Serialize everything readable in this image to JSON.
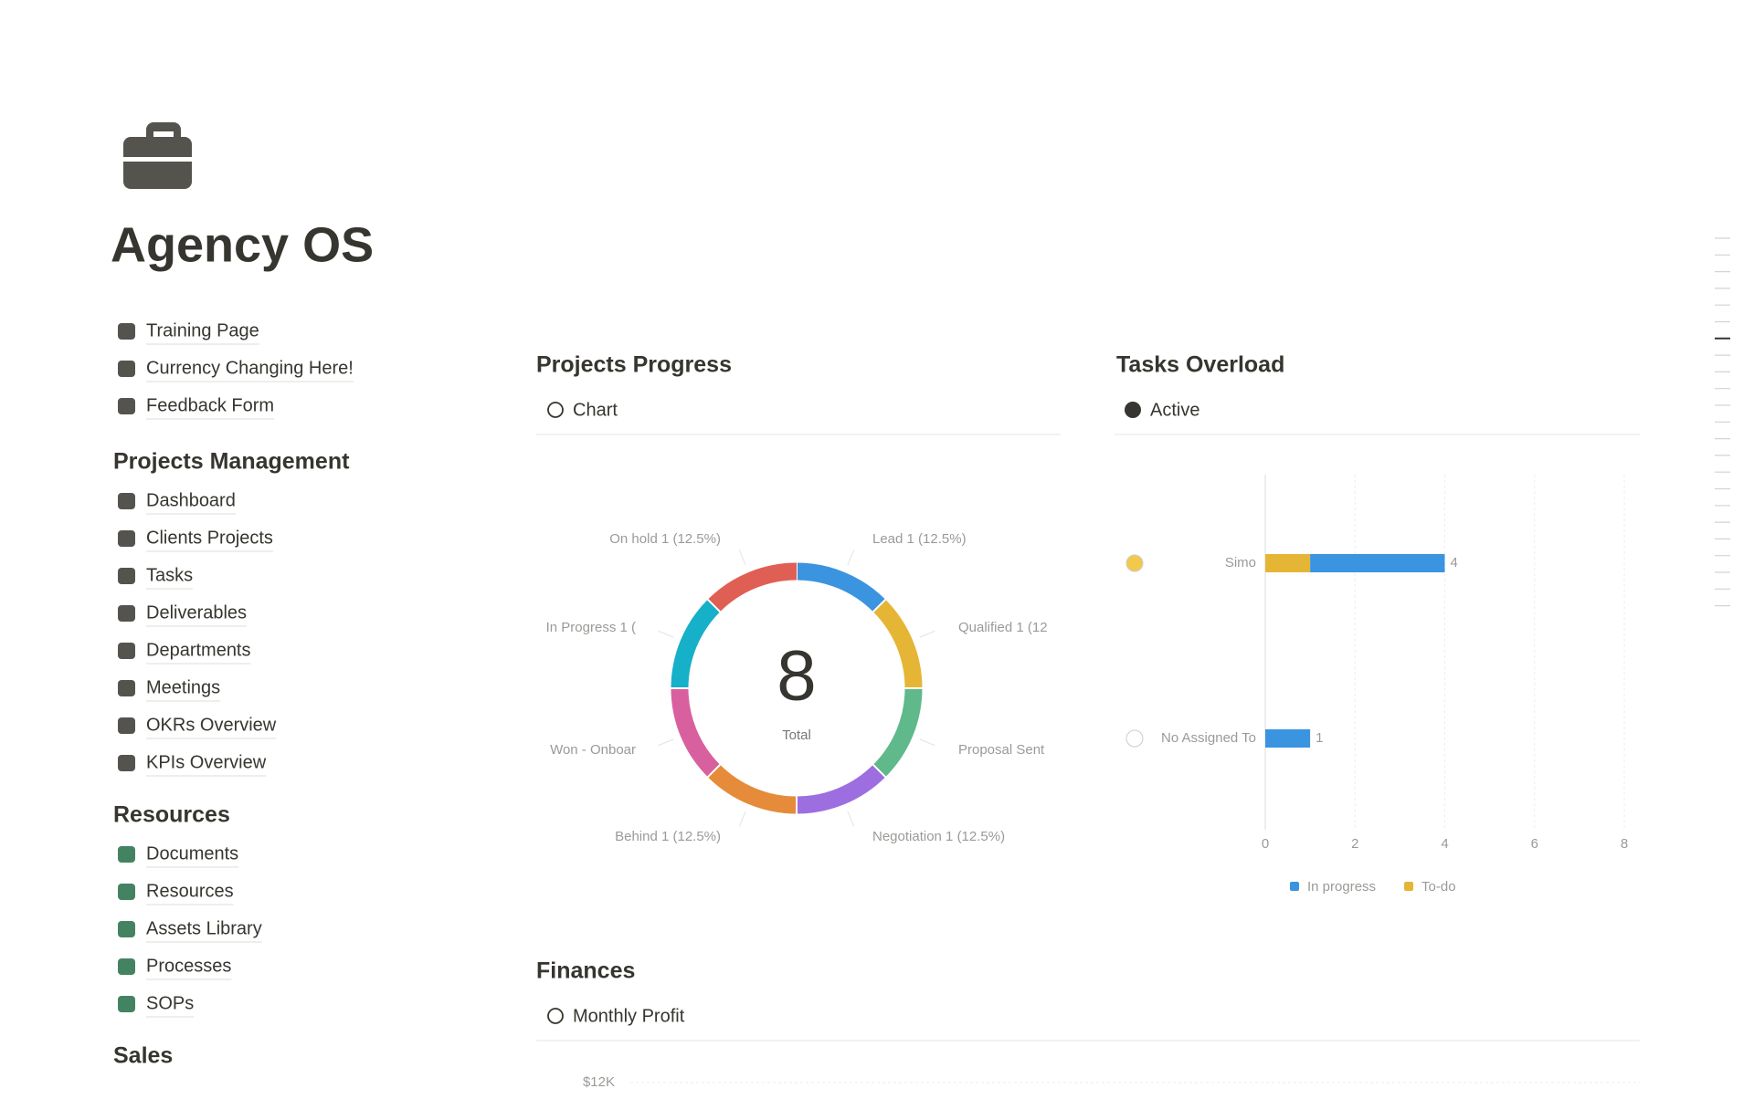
{
  "page": {
    "title": "Agency OS",
    "links": [
      "Training Page",
      "Currency Changing Here!",
      "Feedback Form"
    ],
    "sections": [
      {
        "heading": "Projects Management",
        "items": [
          "Dashboard",
          "Clients Projects",
          "Tasks",
          "Deliverables",
          "Departments",
          "Meetings",
          "OKRs Overview",
          "KPIs Overview"
        ]
      },
      {
        "heading": "Resources",
        "items": [
          "Documents",
          "Resources",
          "Assets Library",
          "Processes",
          "SOPs"
        ]
      },
      {
        "heading": "Sales",
        "items": []
      }
    ]
  },
  "projects_progress": {
    "title": "Projects Progress",
    "view": "Chart",
    "chart_data": {
      "type": "donut",
      "total": 8,
      "total_label": "Total",
      "labels": [
        "Lead  1 (12.5%)",
        "Qualified  1 (12",
        "Proposal Sent",
        "Negotiation  1 (12.5%)",
        "Behind  1 (12.5%)",
        "Won - Onboar",
        "In Progress  1 (",
        "On hold  1 (12.5%)"
      ],
      "values": [
        1,
        1,
        1,
        1,
        1,
        1,
        1,
        1
      ],
      "colors": [
        "#3b94e0",
        "#e5b535",
        "#5fb98a",
        "#9d6ee0",
        "#e58b3a",
        "#d9609e",
        "#16b0c8",
        "#e05f55"
      ]
    }
  },
  "tasks_overload": {
    "title": "Tasks Overload",
    "view": "Active",
    "chart_data": {
      "type": "stacked-barh",
      "categories": [
        "Simo",
        "No Assigned To"
      ],
      "series": [
        {
          "name": "To-do",
          "color": "#e5b535",
          "values": [
            1,
            0
          ]
        },
        {
          "name": "In progress",
          "color": "#3b94e0",
          "values": [
            3,
            1
          ]
        }
      ],
      "totals": [
        4,
        1
      ],
      "xlim": [
        0,
        8
      ],
      "xticks": [
        0,
        2,
        4,
        6,
        8
      ],
      "grid": true,
      "legend_order": [
        1,
        0
      ]
    }
  },
  "finances": {
    "title": "Finances",
    "view": "Monthly Profit",
    "first_tick": "$12K"
  }
}
